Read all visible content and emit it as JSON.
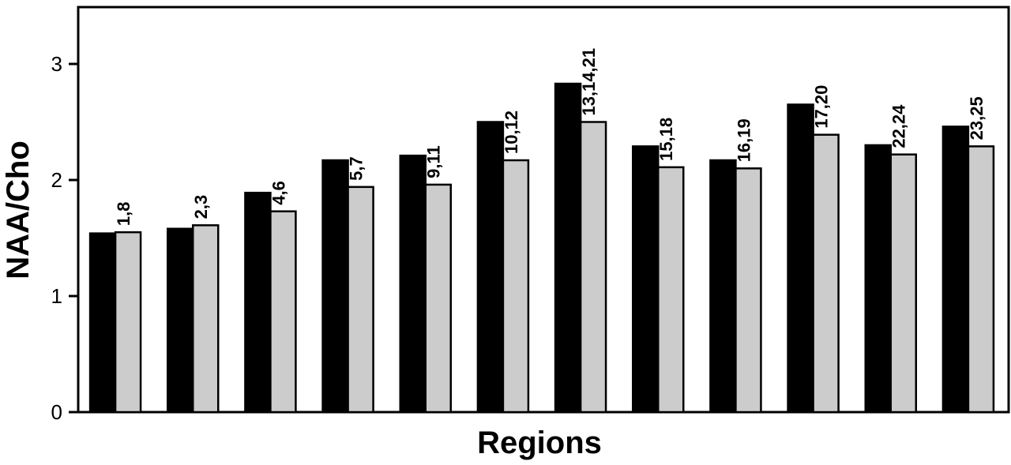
{
  "chart_data": {
    "type": "bar",
    "title": "",
    "xlabel": "Regions",
    "ylabel": "NAA/Cho",
    "ylim": [
      0,
      3.5
    ],
    "yticks": [
      "0",
      "1",
      "2",
      "3"
    ],
    "grid": false,
    "legend": "none",
    "categories": [
      "1,8",
      "2,3",
      "4,6",
      "5,7",
      "9,11",
      "10,12",
      "13,14,21",
      "15,18",
      "16,19",
      "17,20",
      "22,24",
      "23,25"
    ],
    "series": [
      {
        "color": "#000000",
        "values": [
          1.54,
          1.58,
          1.89,
          2.17,
          2.21,
          2.5,
          2.83,
          2.29,
          2.17,
          2.65,
          2.3,
          2.46
        ]
      },
      {
        "color": "#cccccc",
        "values": [
          1.55,
          1.61,
          1.73,
          1.94,
          1.96,
          2.17,
          2.5,
          2.11,
          2.1,
          2.39,
          2.22,
          2.29
        ]
      }
    ]
  }
}
